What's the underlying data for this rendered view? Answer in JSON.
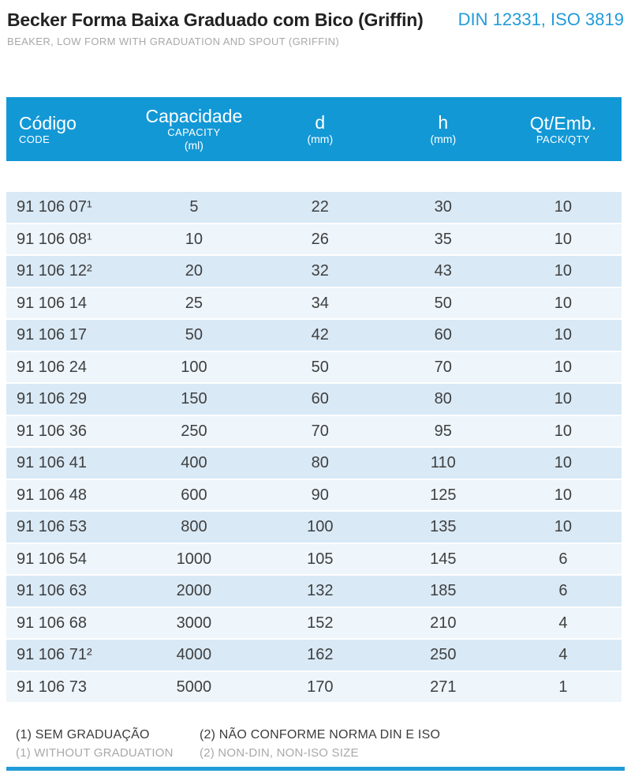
{
  "header": {
    "title": "Becker Forma Baixa Graduado com Bico (Griffin)",
    "standards": "DIN 12331, ISO 3819",
    "subtitle": "BEAKER, LOW FORM WITH GRADUATION AND SPOUT (GRIFFIN)"
  },
  "table": {
    "columns": [
      {
        "label": "Código",
        "sub": "CODE"
      },
      {
        "label": "Capacidade",
        "sub": "CAPACITY",
        "unit": "(ml)"
      },
      {
        "label": "d",
        "sub": "(mm)"
      },
      {
        "label": "h",
        "sub": "(mm)"
      },
      {
        "label": "Qt/Emb.",
        "sub": "PACK/QTY"
      }
    ],
    "rows": [
      [
        "91 106 07¹",
        "5",
        "22",
        "30",
        "10"
      ],
      [
        "91 106 08¹",
        "10",
        "26",
        "35",
        "10"
      ],
      [
        "91 106 12²",
        "20",
        "32",
        "43",
        "10"
      ],
      [
        "91 106 14",
        "25",
        "34",
        "50",
        "10"
      ],
      [
        "91 106 17",
        "50",
        "42",
        "60",
        "10"
      ],
      [
        "91 106 24",
        "100",
        "50",
        "70",
        "10"
      ],
      [
        "91 106 29",
        "150",
        "60",
        "80",
        "10"
      ],
      [
        "91 106 36",
        "250",
        "70",
        "95",
        "10"
      ],
      [
        "91 106 41",
        "400",
        "80",
        "110",
        "10"
      ],
      [
        "91 106 48",
        "600",
        "90",
        "125",
        "10"
      ],
      [
        "91 106 53",
        "800",
        "100",
        "135",
        "10"
      ],
      [
        "91 106 54",
        "1000",
        "105",
        "145",
        "6"
      ],
      [
        "91 106 63",
        "2000",
        "132",
        "185",
        "6"
      ],
      [
        "91 106 68",
        "3000",
        "152",
        "210",
        "4"
      ],
      [
        "91 106 71²",
        "4000",
        "162",
        "250",
        "4"
      ],
      [
        "91 106 73",
        "5000",
        "170",
        "271",
        "1"
      ]
    ]
  },
  "footnotes": {
    "pt1": "(1) SEM GRADUAÇÃO",
    "pt2": "(2) NÃO CONFORME NORMA DIN E ISO",
    "en1": "(1) WITHOUT GRADUATION",
    "en2": "(2) NON-DIN, NON-ISO SIZE"
  },
  "colors": {
    "accent_blue": "#1398d6",
    "standards_blue": "#219cd9",
    "row_dark": "#d9e9f6",
    "row_light": "#eef5fb",
    "text_dark": "#3f3f3f",
    "muted_gray": "#a8a8a8"
  }
}
